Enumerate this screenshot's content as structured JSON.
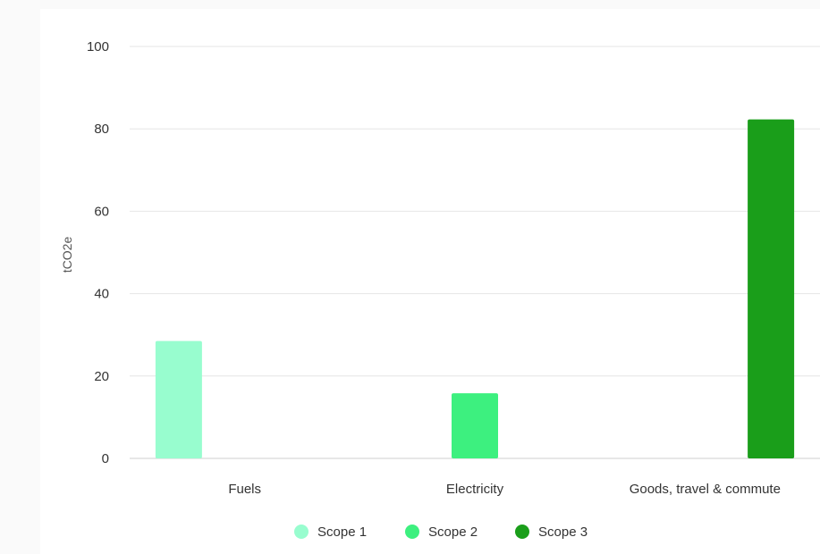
{
  "chart_data": {
    "type": "bar",
    "ylabel": "tCO2e",
    "xlabel": "",
    "ylim": [
      0,
      100
    ],
    "yticks": [
      0,
      20,
      40,
      60,
      80,
      100
    ],
    "categories": [
      "Fuels",
      "Electricity",
      "Goods, travel & commute"
    ],
    "series": [
      {
        "name": "Scope 1",
        "color": "#98fdcf",
        "values": [
          28.5,
          0,
          0
        ]
      },
      {
        "name": "Scope 2",
        "color": "#3df07f",
        "values": [
          0,
          15.8,
          0
        ]
      },
      {
        "name": "Scope 3",
        "color": "#1a9e1a",
        "values": [
          0,
          0,
          82.3
        ]
      }
    ],
    "grid": true,
    "legend_position": "bottom"
  }
}
